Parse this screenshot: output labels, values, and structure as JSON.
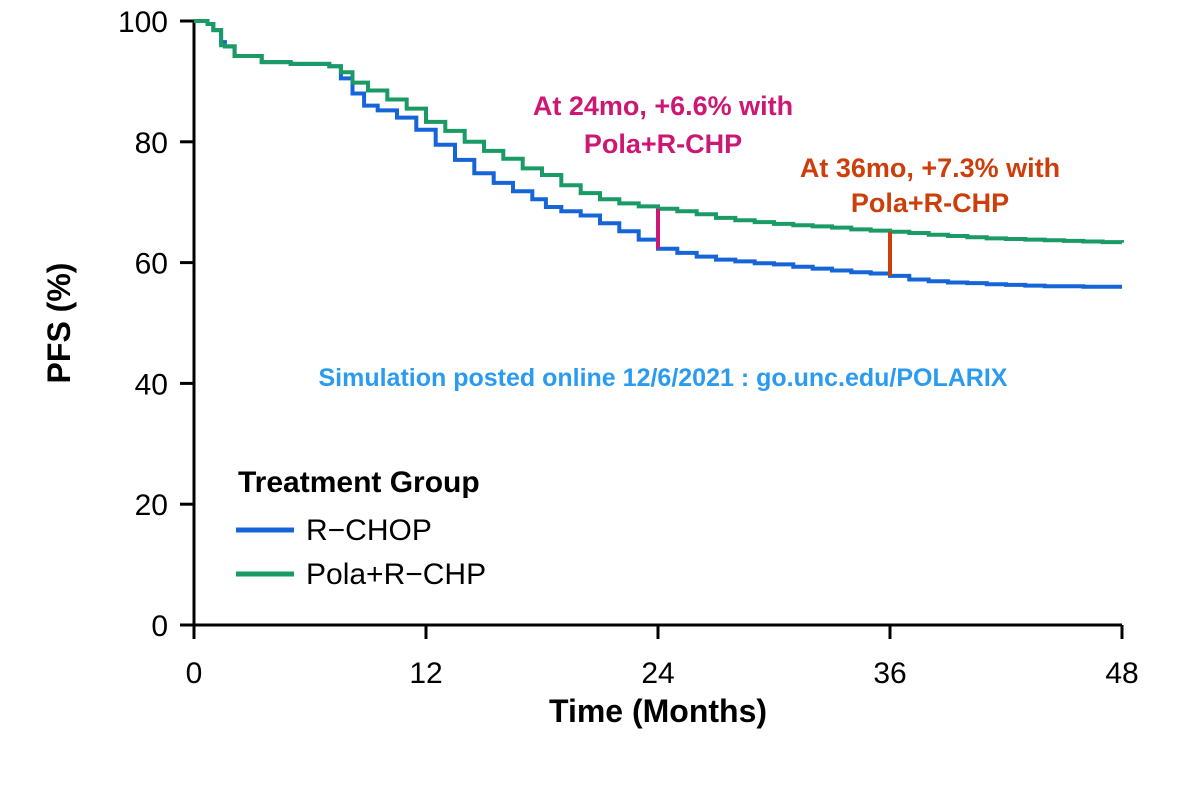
{
  "chart_data": {
    "type": "line",
    "step": true,
    "xlabel": "Time (Months)",
    "ylabel": "PFS (%)",
    "xlim": [
      0,
      48
    ],
    "ylim": [
      0,
      100
    ],
    "xticks": [
      0,
      12,
      24,
      36,
      48
    ],
    "yticks": [
      0,
      20,
      40,
      60,
      80,
      100
    ],
    "grid": false,
    "legend": {
      "title": "Treatment Group",
      "position": "bottom-left",
      "entries": [
        "R−CHOP",
        "Pola+R−CHP"
      ]
    },
    "series": [
      {
        "name": "R−CHOP",
        "color": "#1565d8",
        "x": [
          0,
          0.7,
          1.0,
          1.4,
          1.6,
          2.1,
          3.5,
          5.0,
          7.0,
          7.6,
          8.2,
          8.8,
          9.5,
          10.5,
          11.5,
          12.5,
          13.5,
          14.5,
          15.5,
          16.5,
          17.5,
          18.2,
          19.0,
          20.0,
          21.0,
          22.0,
          23.0,
          24.0,
          25.0,
          26.0,
          27.0,
          28.0,
          29.0,
          30.0,
          31.0,
          32.0,
          33.0,
          34.0,
          35.0,
          36.0,
          37.0,
          38.0,
          39.0,
          40.0,
          41.0,
          42.0,
          43.0,
          44.0,
          45.0,
          46.0,
          47.0,
          48.0
        ],
        "y": [
          100,
          99.5,
          98.5,
          96.5,
          95.8,
          94.2,
          93.2,
          92.9,
          92.5,
          90.5,
          88.0,
          86.0,
          85.2,
          84.0,
          82.0,
          79.5,
          77.0,
          74.8,
          73.2,
          71.8,
          70.5,
          69.2,
          68.5,
          67.8,
          66.5,
          65.2,
          63.8,
          62.3,
          61.6,
          61.0,
          60.5,
          60.2,
          59.9,
          59.7,
          59.3,
          59.0,
          58.7,
          58.4,
          58.2,
          57.8,
          57.2,
          56.9,
          56.7,
          56.6,
          56.4,
          56.3,
          56.2,
          56.1,
          56.1,
          56.0,
          56.0,
          56.0
        ]
      },
      {
        "name": "Pola+R−CHP",
        "color": "#1a9a64",
        "x": [
          0,
          0.7,
          1.0,
          1.4,
          1.6,
          2.1,
          3.5,
          5.0,
          7.0,
          7.6,
          8.2,
          9.0,
          10.0,
          11.0,
          12.0,
          13.0,
          14.0,
          15.0,
          16.0,
          17.0,
          18.0,
          19.0,
          20.0,
          21.0,
          22.0,
          23.0,
          24.0,
          25.0,
          26.0,
          27.0,
          28.0,
          29.0,
          30.0,
          31.0,
          32.0,
          33.0,
          34.0,
          35.0,
          36.0,
          37.0,
          38.0,
          39.0,
          40.0,
          41.0,
          42.0,
          43.0,
          44.0,
          45.0,
          46.0,
          47.0,
          48.0
        ],
        "y": [
          100,
          99.5,
          98.5,
          96.0,
          95.8,
          94.2,
          93.2,
          92.9,
          92.5,
          91.5,
          89.8,
          88.5,
          87.0,
          85.5,
          83.3,
          81.8,
          80.0,
          78.5,
          77.2,
          75.6,
          74.5,
          72.8,
          71.5,
          70.5,
          69.8,
          69.3,
          68.9,
          68.5,
          68.0,
          67.4,
          67.0,
          66.7,
          66.4,
          66.2,
          66.0,
          65.8,
          65.5,
          65.3,
          65.1,
          64.9,
          64.6,
          64.4,
          64.2,
          64.0,
          63.9,
          63.8,
          63.7,
          63.6,
          63.5,
          63.4,
          63.3
        ]
      }
    ],
    "annotations": [
      {
        "lines": [
          "At 24mo, +6.6% with",
          "Pola+R-CHP"
        ],
        "color": "#cc1874",
        "x": 24,
        "y_from": 62.3,
        "y_to": 68.9
      },
      {
        "lines": [
          "At 36mo, +7.3% with",
          "Pola+R-CHP"
        ],
        "color": "#cc3f0c",
        "x": 36,
        "y_from": 57.8,
        "y_to": 65.1
      }
    ],
    "note": {
      "text": "Simulation posted online 12/6/2021 : go.unc.edu/POLARIX",
      "color": "#2b9bf0"
    }
  }
}
